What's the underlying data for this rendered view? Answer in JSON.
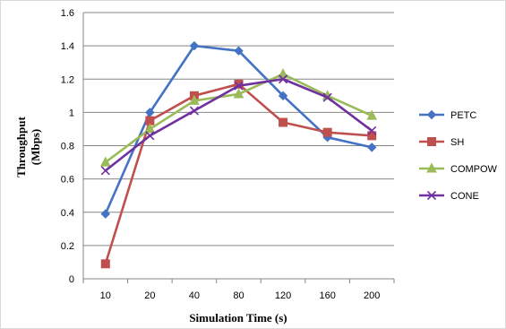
{
  "chart_data": {
    "type": "line",
    "title": "",
    "xlabel": "Simulation Time (s)",
    "ylabel_line1": "Throughput",
    "ylabel_line2": "(Mbps)",
    "categories": [
      "10",
      "20",
      "40",
      "80",
      "120",
      "160",
      "200"
    ],
    "ylim": [
      0,
      1.6
    ],
    "yticks": [
      "0",
      "0.2",
      "0.4",
      "0.6",
      "0.8",
      "1",
      "1.2",
      "1.4",
      "1.6"
    ],
    "grid": true,
    "legend_position": "right",
    "series": [
      {
        "name": "PETC",
        "color": "#4472C4",
        "marker": "diamond",
        "values": [
          0.39,
          1.0,
          1.4,
          1.37,
          1.1,
          0.85,
          0.79
        ]
      },
      {
        "name": "SH",
        "color": "#C0504D",
        "marker": "square",
        "values": [
          0.09,
          0.95,
          1.1,
          1.17,
          0.94,
          0.88,
          0.86
        ]
      },
      {
        "name": "COMPOW",
        "color": "#9BBB59",
        "marker": "triangle",
        "values": [
          0.7,
          0.9,
          1.07,
          1.11,
          1.23,
          1.1,
          0.98
        ]
      },
      {
        "name": "CONE",
        "color": "#7030A0",
        "marker": "x",
        "values": [
          0.65,
          0.86,
          1.01,
          1.16,
          1.2,
          1.09,
          0.89
        ]
      }
    ]
  }
}
